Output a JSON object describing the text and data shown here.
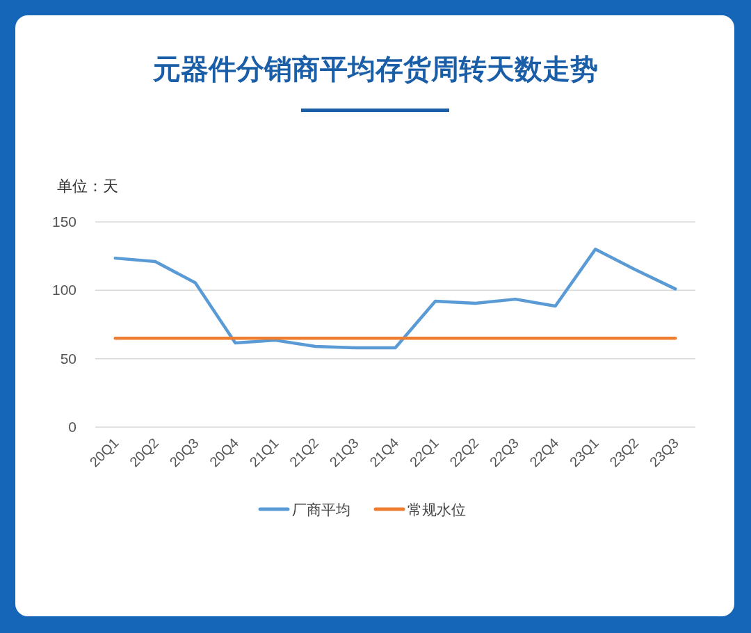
{
  "chart_data": {
    "type": "line",
    "title": "元器件分销商平均存货周转天数走势",
    "ylabel": "单位：天",
    "categories": [
      "20Q1",
      "20Q2",
      "20Q3",
      "20Q4",
      "21Q1",
      "21Q2",
      "21Q3",
      "21Q4",
      "22Q1",
      "22Q2",
      "22Q3",
      "22Q4",
      "23Q1",
      "23Q2",
      "23Q3"
    ],
    "series": [
      {
        "name": "厂商平均",
        "color": "#5b9bd5",
        "values": [
          123.5,
          121,
          105.5,
          61.5,
          63.5,
          59,
          58,
          58,
          92,
          90.5,
          93.5,
          88.5,
          130,
          115,
          101
        ]
      },
      {
        "name": "常规水位",
        "color": "#ed7d31",
        "values": [
          65,
          65,
          65,
          65,
          65,
          65,
          65,
          65,
          65,
          65,
          65,
          65,
          65,
          65,
          65
        ]
      }
    ],
    "ylim": [
      0,
      150
    ],
    "yticks": [
      0,
      50,
      100,
      150
    ],
    "grid": "y",
    "legend": "bottom",
    "marker": "none",
    "line_style": "solid"
  }
}
